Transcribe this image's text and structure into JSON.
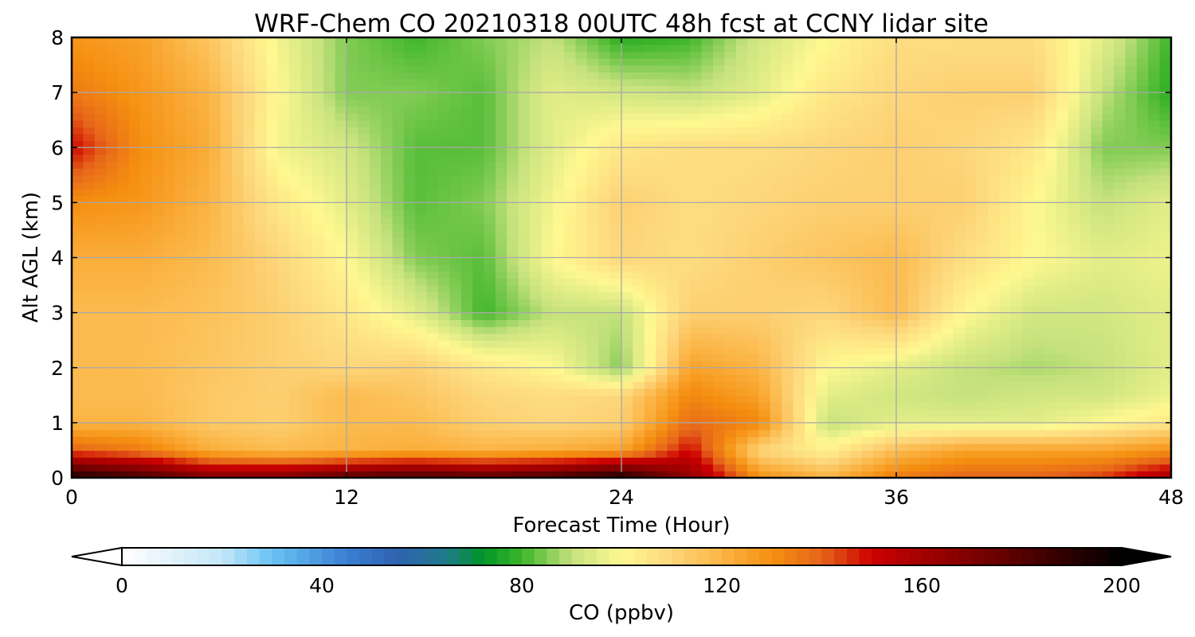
{
  "chart_data": {
    "type": "heatmap",
    "title": "WRF-Chem CO  20210318 00UTC 48h fcst at CCNY lidar site",
    "xlabel": "Forecast Time (Hour)",
    "ylabel": "Alt AGL (km)",
    "xlim": [
      0,
      48
    ],
    "ylim": [
      0,
      8
    ],
    "x_ticks": [
      "0",
      "12",
      "24",
      "36",
      "48"
    ],
    "y_ticks": [
      "0",
      "1",
      "2",
      "3",
      "4",
      "5",
      "6",
      "7",
      "8"
    ],
    "grid": true,
    "x": [
      0,
      3,
      6,
      9,
      12,
      15,
      18,
      21,
      24,
      27,
      30,
      33,
      36,
      39,
      42,
      45,
      48
    ],
    "y": [
      0,
      0.5,
      1,
      1.5,
      2,
      3,
      4,
      5,
      6,
      7,
      8
    ],
    "z_units": "ppbv",
    "z": [
      [
        195,
        185,
        170,
        170,
        180,
        185,
        180,
        185,
        195,
        165,
        130,
        120,
        135,
        140,
        140,
        145,
        160
      ],
      [
        140,
        135,
        122,
        118,
        120,
        122,
        120,
        122,
        125,
        150,
        110,
        102,
        118,
        125,
        125,
        125,
        130
      ],
      [
        120,
        120,
        114,
        112,
        118,
        118,
        112,
        110,
        112,
        138,
        132,
        90,
        95,
        95,
        95,
        100,
        105
      ],
      [
        118,
        118,
        114,
        112,
        118,
        115,
        110,
        108,
        110,
        132,
        125,
        95,
        92,
        90,
        92,
        92,
        97
      ],
      [
        118,
        118,
        115,
        112,
        110,
        112,
        105,
        100,
        85,
        125,
        120,
        100,
        95,
        90,
        88,
        90,
        95
      ],
      [
        118,
        118,
        116,
        112,
        105,
        95,
        80,
        90,
        90,
        112,
        112,
        110,
        118,
        100,
        92,
        92,
        95
      ],
      [
        122,
        122,
        118,
        110,
        100,
        85,
        82,
        100,
        110,
        108,
        112,
        115,
        118,
        108,
        100,
        95,
        97
      ],
      [
        130,
        128,
        120,
        105,
        95,
        82,
        85,
        98,
        112,
        108,
        110,
        112,
        112,
        112,
        100,
        90,
        95
      ],
      [
        150,
        130,
        122,
        98,
        92,
        82,
        82,
        95,
        105,
        108,
        108,
        110,
        112,
        110,
        105,
        85,
        85
      ],
      [
        135,
        128,
        120,
        100,
        85,
        85,
        82,
        95,
        92,
        90,
        95,
        105,
        110,
        112,
        112,
        90,
        78
      ],
      [
        128,
        125,
        115,
        98,
        85,
        80,
        85,
        90,
        78,
        80,
        92,
        100,
        108,
        108,
        108,
        95,
        80
      ]
    ],
    "colorbar": {
      "label": "CO  (ppbv)",
      "min": 0,
      "max": 200,
      "ticks": [
        "0",
        "40",
        "80",
        "120",
        "160",
        "200"
      ],
      "extend": "both",
      "colors": {
        "v0": "#ffffff",
        "v20": "#c3e6f8",
        "v30": "#69c3f3",
        "v45": "#3a7fd3",
        "v55": "#2f62b0",
        "v65": "#1f7a8a",
        "v72": "#00942a",
        "v80": "#3db52a",
        "v90": "#c6e27d",
        "v100": "#fff891",
        "v110": "#fdd67b",
        "v120": "#fbb444",
        "v130": "#f58f10",
        "v140": "#e6641a",
        "v150": "#cc0000",
        "v175": "#690000",
        "v200": "#000000"
      }
    }
  }
}
